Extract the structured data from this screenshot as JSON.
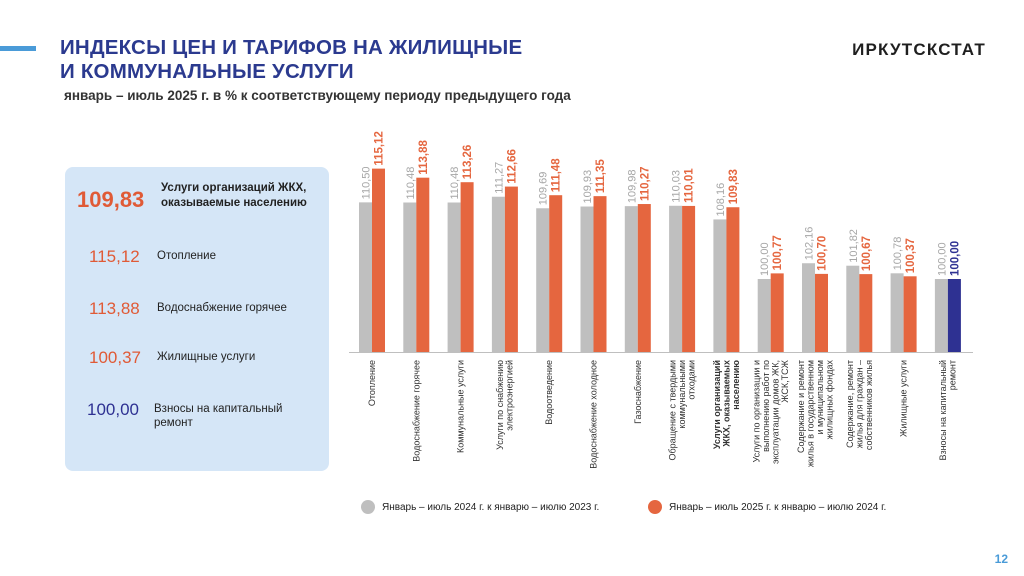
{
  "header": {
    "title_line1": "ИНДЕКСЫ ЦЕН И ТАРИФОВ НА ЖИЛИЩНЫЕ",
    "title_line2": "И КОММУНАЛЬНЫЕ УСЛУГИ",
    "subtitle": "январь – июль 2025 г. в % к соответствующему периоду предыдущего года",
    "org": "ИРКУТСКСТАТ"
  },
  "side_panel": {
    "main": {
      "value": "109,83",
      "label": "Услуги организаций ЖКХ, оказываемые населению"
    },
    "items": [
      {
        "value": "115,12",
        "label": "Отопление"
      },
      {
        "value": "113,88",
        "label": "Водоснабжение горячее"
      },
      {
        "value": "100,37",
        "label": "Жилищные услуги"
      },
      {
        "value": "100,00",
        "label": "Взносы на капитальный ремонт"
      }
    ]
  },
  "colors": {
    "series_2024": "#bfbfbf",
    "series_2025": "#e5663f",
    "highlight_2025": "#2e3192",
    "title": "#2b3a8f",
    "panel_bg": "#d5e6f7"
  },
  "chart_data": {
    "type": "bar",
    "categories": [
      "Отопление",
      "Водоснабжение горячее",
      "Коммунальные услуги",
      "Услуги по снабжению электроэнергией",
      "Водоотведение",
      "Водоснабжение холодное",
      "Газоснабжение",
      "Обращение с твердыми коммунальными отходами",
      "Услуги организаций ЖКХ, оказываемых населению",
      "Услуги по организации и выполнению работ по эксплуатации домов ЖК, ЖСК,ТСЖ",
      "Содержание и ремонт жилья в государственном и муниципальном жилищных фондах",
      "Содержание, ремонт жилья для граждан – собственников жилья",
      "Жилищные услуги",
      "Взносы на капитальный ремонт"
    ],
    "category_label_lines": [
      [
        "Отопление"
      ],
      [
        "Водоснабжение горячее"
      ],
      [
        "Коммунальные услуги"
      ],
      [
        "Услуги по снабжению",
        "электроэнергией"
      ],
      [
        "Водоотведение"
      ],
      [
        "Водоснабжение холодное"
      ],
      [
        "Газоснабжение"
      ],
      [
        "Обращение с твердыми",
        "коммунальными",
        "отходами"
      ],
      [
        "Услуги организаций",
        "ЖКХ, оказываемых",
        "населению"
      ],
      [
        "Услуги по организации и",
        "выполнению работ по",
        "эксплуатации домов ЖК,",
        "ЖСК,ТСЖ"
      ],
      [
        "Содержание и ремонт",
        "жилья в государственном",
        "и муниципальном",
        "жилищных фондах"
      ],
      [
        "Содержание, ремонт",
        "жилья для граждан –",
        "собственников жилья"
      ],
      [
        "Жилищные услуги"
      ],
      [
        "Взносы на капитальный",
        "ремонт"
      ]
    ],
    "bold_category_index": 8,
    "highlight_category_index": 13,
    "series": [
      {
        "name": "Январь – июль  2024 г. к  январю – июлю  2023 г.",
        "values": [
          110.5,
          110.48,
          110.48,
          111.27,
          109.69,
          109.93,
          109.98,
          110.03,
          108.16,
          100.0,
          102.16,
          101.82,
          100.78,
          100.0
        ],
        "labels": [
          "110,50",
          "110,48",
          "110,48",
          "111,27",
          "109,69",
          "109,93",
          "109,98",
          "110,03",
          "108,16",
          "100,00",
          "102,16",
          "101,82",
          "100,78",
          "100,00"
        ]
      },
      {
        "name": "Январь – июль 2025 г. к  январю – июлю  2024 г.",
        "values": [
          115.12,
          113.88,
          113.26,
          112.66,
          111.48,
          111.35,
          110.27,
          110.01,
          109.83,
          100.77,
          100.7,
          100.67,
          100.37,
          100.0
        ],
        "labels": [
          "115,12",
          "113,88",
          "113,26",
          "112,66",
          "111,48",
          "111,35",
          "110,27",
          "110,01",
          "109,83",
          "100,77",
          "100,70",
          "100,67",
          "100,37",
          "100,00"
        ]
      }
    ],
    "legend_position": "bottom",
    "grid": false
  },
  "page_number": "12"
}
